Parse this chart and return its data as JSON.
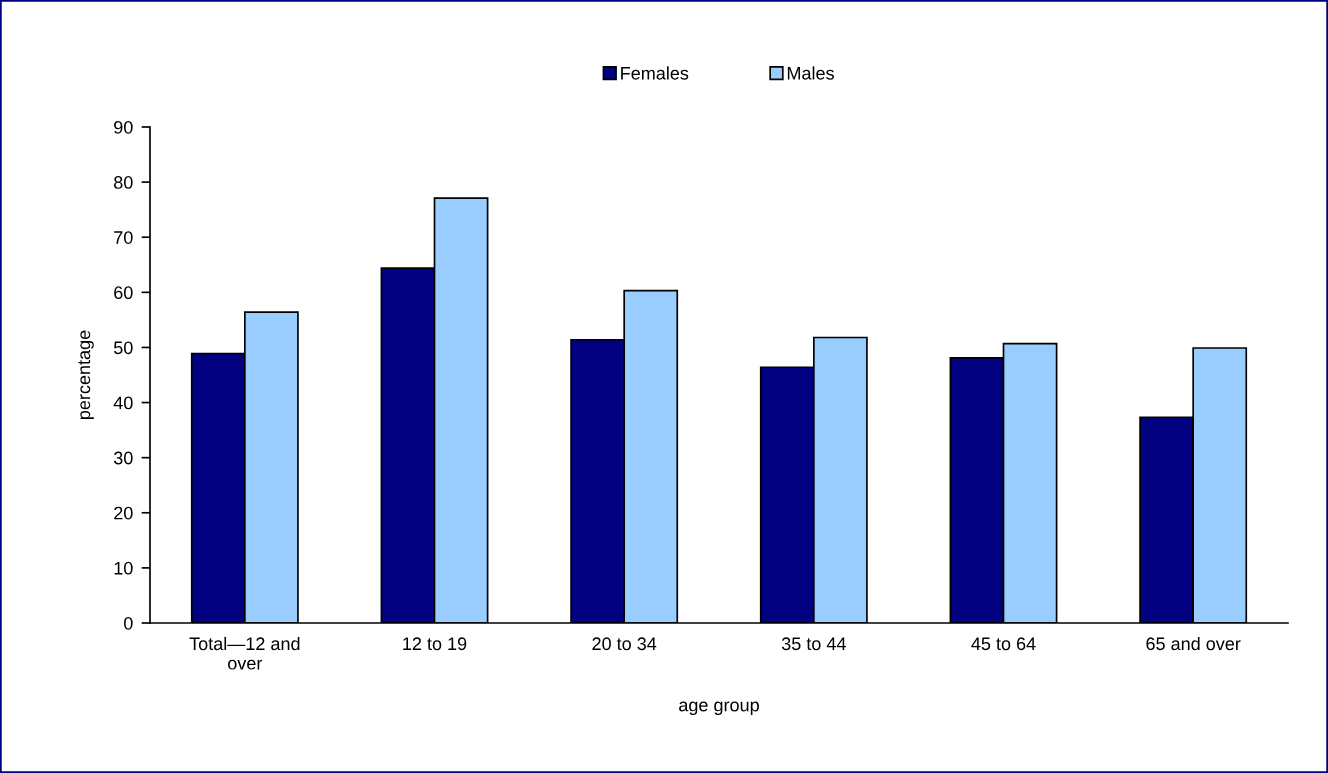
{
  "chart_data": {
    "type": "bar",
    "xlabel": "age group",
    "ylabel": "percentage",
    "categories": [
      "Total—12 and\nover",
      "12 to 19",
      "20 to 34",
      "35 to 44",
      "45 to 64",
      "65 and over"
    ],
    "series": [
      {
        "name": "Females",
        "color": "#000080",
        "values": [
          48.9,
          64.4,
          51.4,
          46.4,
          48.1,
          37.3
        ]
      },
      {
        "name": "Males",
        "color": "#99ccff",
        "values": [
          56.4,
          77.1,
          60.3,
          51.8,
          50.7,
          49.9
        ]
      }
    ],
    "ylim": [
      0,
      90
    ],
    "yticks": [
      0,
      10,
      20,
      30,
      40,
      50,
      60,
      70,
      80,
      90
    ],
    "grid": false,
    "legend": "top"
  }
}
